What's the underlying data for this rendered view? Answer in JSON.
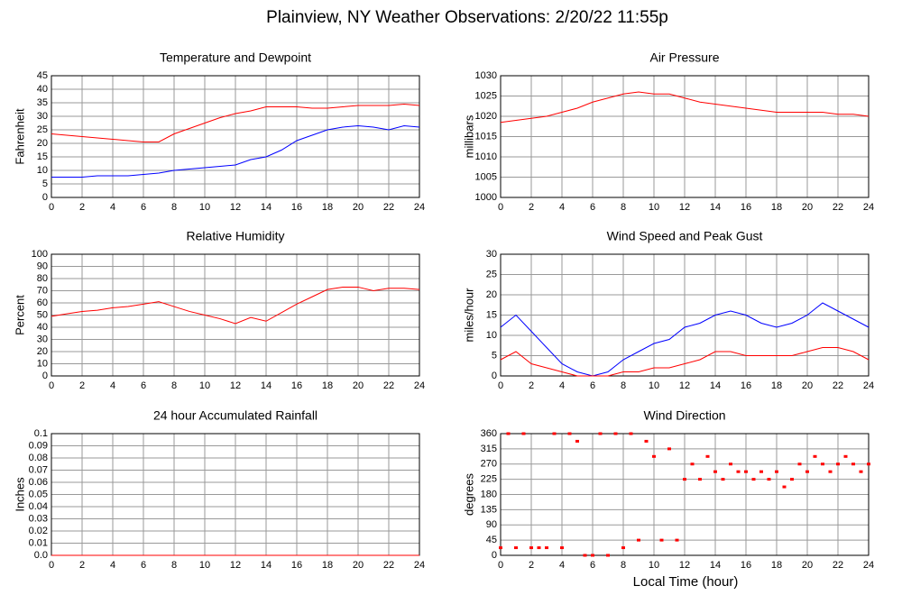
{
  "title": "Plainview, NY Weather Observations: 2/20/22 11:55p",
  "xlabel": "Local Time (hour)",
  "chart_data": [
    {
      "type": "line",
      "title": "Temperature and Dewpoint",
      "ylabel": "Fahrenheit",
      "x": [
        0,
        1,
        2,
        3,
        4,
        5,
        6,
        7,
        8,
        9,
        10,
        11,
        12,
        13,
        14,
        15,
        16,
        17,
        18,
        19,
        20,
        21,
        22,
        23,
        24
      ],
      "series": [
        {
          "color": "#ff0000",
          "values": [
            23.5,
            23,
            22.5,
            22,
            21.5,
            21,
            20.5,
            20.5,
            23.5,
            25.5,
            27.5,
            29.5,
            31,
            32,
            33.5,
            33.5,
            33.5,
            33,
            33,
            33.5,
            34,
            34,
            34,
            34.5,
            34
          ]
        },
        {
          "color": "#0000ff",
          "values": [
            7.5,
            7.5,
            7.5,
            8,
            8,
            8,
            8.5,
            9,
            10,
            10.5,
            11,
            11.5,
            12,
            14,
            15,
            17.5,
            21,
            23,
            25,
            26,
            26.5,
            26,
            25,
            26.5,
            26
          ]
        }
      ],
      "xlim": [
        0,
        24
      ],
      "xticks": [
        0,
        2,
        4,
        6,
        8,
        10,
        12,
        14,
        16,
        18,
        20,
        22,
        24
      ],
      "ylim": [
        0,
        45
      ],
      "yticks": [
        0,
        5,
        10,
        15,
        20,
        25,
        30,
        35,
        40,
        45
      ],
      "grid": true
    },
    {
      "type": "line",
      "title": "Air Pressure",
      "ylabel": "millibars",
      "x": [
        0,
        1,
        2,
        3,
        4,
        5,
        6,
        7,
        8,
        9,
        10,
        11,
        12,
        13,
        14,
        15,
        16,
        17,
        18,
        19,
        20,
        21,
        22,
        23,
        24
      ],
      "series": [
        {
          "color": "#ff0000",
          "values": [
            1018.5,
            1019,
            1019.5,
            1020,
            1021,
            1022,
            1023.5,
            1024.5,
            1025.5,
            1026,
            1025.5,
            1025.5,
            1024.5,
            1023.5,
            1023,
            1022.5,
            1022,
            1021.5,
            1021,
            1021,
            1021,
            1021,
            1020.5,
            1020.5,
            1020
          ]
        }
      ],
      "xlim": [
        0,
        24
      ],
      "xticks": [
        0,
        2,
        4,
        6,
        8,
        10,
        12,
        14,
        16,
        18,
        20,
        22,
        24
      ],
      "ylim": [
        1000,
        1030
      ],
      "yticks": [
        1000,
        1005,
        1010,
        1015,
        1020,
        1025,
        1030
      ],
      "grid": true
    },
    {
      "type": "line",
      "title": "Relative Humidity",
      "ylabel": "Percent",
      "x": [
        0,
        1,
        2,
        3,
        4,
        5,
        6,
        7,
        8,
        9,
        10,
        11,
        12,
        13,
        14,
        15,
        16,
        17,
        18,
        19,
        20,
        21,
        22,
        23,
        24
      ],
      "series": [
        {
          "color": "#ff0000",
          "values": [
            49,
            51,
            53,
            54,
            56,
            57,
            59,
            61,
            57,
            53,
            50,
            47,
            43,
            48,
            45,
            52,
            59,
            65,
            71,
            73,
            73,
            70,
            72,
            72,
            71
          ]
        }
      ],
      "xlim": [
        0,
        24
      ],
      "xticks": [
        0,
        2,
        4,
        6,
        8,
        10,
        12,
        14,
        16,
        18,
        20,
        22,
        24
      ],
      "ylim": [
        0,
        100
      ],
      "yticks": [
        0,
        10,
        20,
        30,
        40,
        50,
        60,
        70,
        80,
        90,
        100
      ],
      "grid": true
    },
    {
      "type": "line",
      "title": "Wind Speed and Peak Gust",
      "ylabel": "miles/hour",
      "x": [
        0,
        1,
        2,
        3,
        4,
        5,
        6,
        7,
        8,
        9,
        10,
        11,
        12,
        13,
        14,
        15,
        16,
        17,
        18,
        19,
        20,
        21,
        22,
        23,
        24
      ],
      "series": [
        {
          "color": "#0000ff",
          "values": [
            12,
            15,
            11,
            7,
            3,
            1,
            0,
            1,
            4,
            6,
            8,
            9,
            12,
            13,
            15,
            16,
            15,
            13,
            12,
            13,
            15,
            18,
            16,
            14,
            12
          ]
        },
        {
          "color": "#ff0000",
          "values": [
            4,
            6,
            3,
            2,
            1,
            0,
            0,
            0,
            1,
            1,
            2,
            2,
            3,
            4,
            6,
            6,
            5,
            5,
            5,
            5,
            6,
            7,
            7,
            6,
            4
          ]
        }
      ],
      "xlim": [
        0,
        24
      ],
      "xticks": [
        0,
        2,
        4,
        6,
        8,
        10,
        12,
        14,
        16,
        18,
        20,
        22,
        24
      ],
      "ylim": [
        0,
        30
      ],
      "yticks": [
        0,
        5,
        10,
        15,
        20,
        25,
        30
      ],
      "grid": true
    },
    {
      "type": "line",
      "title": "24 hour Accumulated Rainfall",
      "ylabel": "Inches",
      "x": [
        0,
        1,
        2,
        3,
        4,
        5,
        6,
        7,
        8,
        9,
        10,
        11,
        12,
        13,
        14,
        15,
        16,
        17,
        18,
        19,
        20,
        21,
        22,
        23,
        24
      ],
      "series": [
        {
          "color": "#ff0000",
          "values": [
            0,
            0,
            0,
            0,
            0,
            0,
            0,
            0,
            0,
            0,
            0,
            0,
            0,
            0,
            0,
            0,
            0,
            0,
            0,
            0,
            0,
            0,
            0,
            0,
            0
          ]
        }
      ],
      "xlim": [
        0,
        24
      ],
      "xticks": [
        0,
        2,
        4,
        6,
        8,
        10,
        12,
        14,
        16,
        18,
        20,
        22,
        24
      ],
      "ylim": [
        0,
        0.1
      ],
      "yticks": [
        {
          "value": 0,
          "label": "0.0"
        },
        0.01,
        0.02,
        0.03,
        0.04,
        0.05,
        0.06,
        0.07,
        0.08,
        0.09,
        0.1
      ],
      "grid": true
    },
    {
      "type": "scatter",
      "title": "Wind Direction",
      "ylabel": "degrees",
      "x": [
        0,
        0.5,
        1,
        1.5,
        2,
        2.5,
        3,
        3.5,
        4,
        4.5,
        5,
        5.5,
        6,
        6.5,
        7,
        7.5,
        8,
        8.5,
        9,
        9.5,
        10,
        10.5,
        11,
        11.5,
        12,
        12.5,
        13,
        13.5,
        14,
        14.5,
        15,
        15.5,
        16,
        16.5,
        17,
        17.5,
        18,
        18.5,
        19,
        19.5,
        20,
        20.5,
        21,
        21.5,
        22,
        22.5,
        23,
        23.5,
        24
      ],
      "series": [
        {
          "color": "#ff0000",
          "values": [
            22.5,
            360,
            22.5,
            360,
            22.5,
            22.5,
            22.5,
            360,
            22.5,
            360,
            337.5,
            0,
            0,
            360,
            0,
            360,
            22.5,
            360,
            45,
            337.5,
            292.5,
            45,
            315,
            45,
            225,
            270,
            225,
            292.5,
            247.5,
            225,
            270,
            247.5,
            247.5,
            225,
            247.5,
            225,
            247.5,
            202.5,
            225,
            270,
            247.5,
            292.5,
            270,
            247.5,
            270,
            292.5,
            270,
            247.5,
            270
          ]
        }
      ],
      "xlim": [
        0,
        24
      ],
      "xticks": [
        0,
        2,
        4,
        6,
        8,
        10,
        12,
        14,
        16,
        18,
        20,
        22,
        24
      ],
      "ylim": [
        0,
        360
      ],
      "yticks": [
        0,
        45,
        90,
        135,
        180,
        225,
        270,
        315,
        360
      ],
      "grid": true
    }
  ]
}
